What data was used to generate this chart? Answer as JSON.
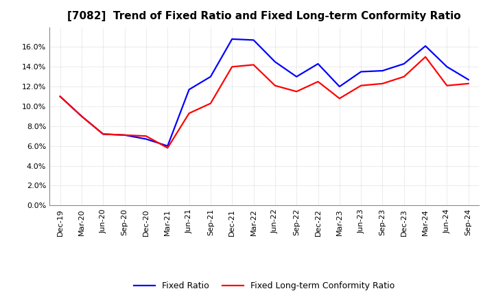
{
  "title": "[7082]  Trend of Fixed Ratio and Fixed Long-term Conformity Ratio",
  "x_labels": [
    "Dec-19",
    "Mar-20",
    "Jun-20",
    "Sep-20",
    "Dec-20",
    "Mar-21",
    "Jun-21",
    "Sep-21",
    "Dec-21",
    "Mar-22",
    "Jun-22",
    "Sep-22",
    "Dec-22",
    "Mar-23",
    "Jun-23",
    "Sep-23",
    "Dec-23",
    "Mar-24",
    "Jun-24",
    "Sep-24"
  ],
  "fixed_ratio": [
    11.0,
    9.0,
    7.2,
    7.1,
    6.7,
    6.0,
    11.7,
    13.0,
    16.8,
    16.7,
    14.5,
    13.0,
    14.3,
    12.0,
    13.5,
    13.6,
    14.3,
    16.1,
    14.0,
    12.7
  ],
  "fixed_lt_ratio": [
    11.0,
    9.0,
    7.2,
    7.1,
    7.0,
    5.8,
    9.3,
    10.3,
    14.0,
    14.2,
    12.1,
    11.5,
    12.5,
    10.8,
    12.1,
    12.3,
    13.0,
    15.0,
    12.1,
    12.3
  ],
  "fixed_ratio_color": "#0000FF",
  "fixed_lt_ratio_color": "#FF0000",
  "ylim": [
    0,
    18
  ],
  "yticks": [
    0,
    2,
    4,
    6,
    8,
    10,
    12,
    14,
    16
  ],
  "background_color": "#FFFFFF",
  "plot_bg_color": "#FFFFFF",
  "grid_color": "#BBBBBB",
  "legend_fixed_ratio": "Fixed Ratio",
  "legend_fixed_lt_ratio": "Fixed Long-term Conformity Ratio",
  "title_fontsize": 11,
  "tick_fontsize": 8,
  "linewidth": 1.6
}
